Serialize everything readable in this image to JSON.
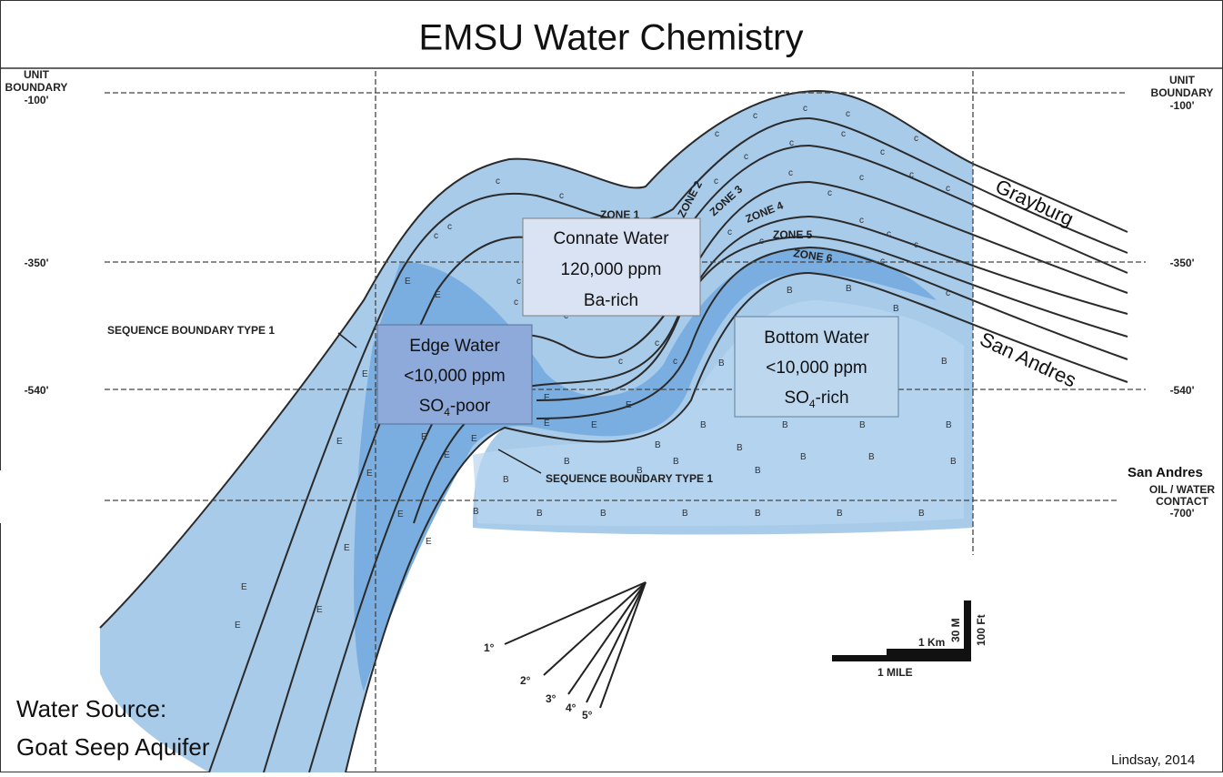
{
  "header": {
    "title": "EMSU Water Chemistry"
  },
  "left_labels": {
    "unit_boundary": [
      "UNIT",
      "BOUNDARY",
      "-100'"
    ],
    "depth_350": "-350'",
    "depth_540": "-540'",
    "sequence_boundary": "SEQUENCE BOUNDARY TYPE 1"
  },
  "right_labels": {
    "unit_boundary": [
      "UNIT",
      "BOUNDARY",
      "-100'"
    ],
    "depth_350": "-350'",
    "depth_540": "-540'",
    "oil_water_contact": [
      "San Andres",
      "OIL / WATER",
      "CONTACT",
      "-700'"
    ]
  },
  "zones": [
    "ZONE 1",
    "ZONE 2",
    "ZONE 3",
    "ZONE 4",
    "ZONE 5",
    "ZONE 6"
  ],
  "formations": {
    "upper": "Grayburg",
    "lower": "San Andres"
  },
  "facies_symbols": {
    "connate": "c",
    "edge": "E",
    "bottom": "B"
  },
  "boxes": {
    "connate": {
      "lines": [
        "Connate Water",
        "120,000 ppm",
        "Ba-rich"
      ]
    },
    "edge": {
      "lines": [
        "Edge Water",
        "<10,000 ppm"
      ],
      "chem": {
        "base": "SO",
        "sub": "4",
        "rest": "-poor"
      }
    },
    "bottom": {
      "lines": [
        "Bottom Water",
        "<10,000 ppm"
      ],
      "chem": {
        "base": "SO",
        "sub": "4",
        "rest": "-rich"
      }
    }
  },
  "lower_sequence_boundary": "SEQUENCE BOUNDARY TYPE 1",
  "dip_angles": [
    "1°",
    "2°",
    "3°",
    "4°",
    "5°"
  ],
  "scale": {
    "km": "1 Km",
    "mile": "1 MILE",
    "meters": "30 M",
    "feet": "100 Ft"
  },
  "water_source": [
    "Water Source:",
    "Goat Seep Aquifer"
  ],
  "credit": "Lindsay, 2014"
}
